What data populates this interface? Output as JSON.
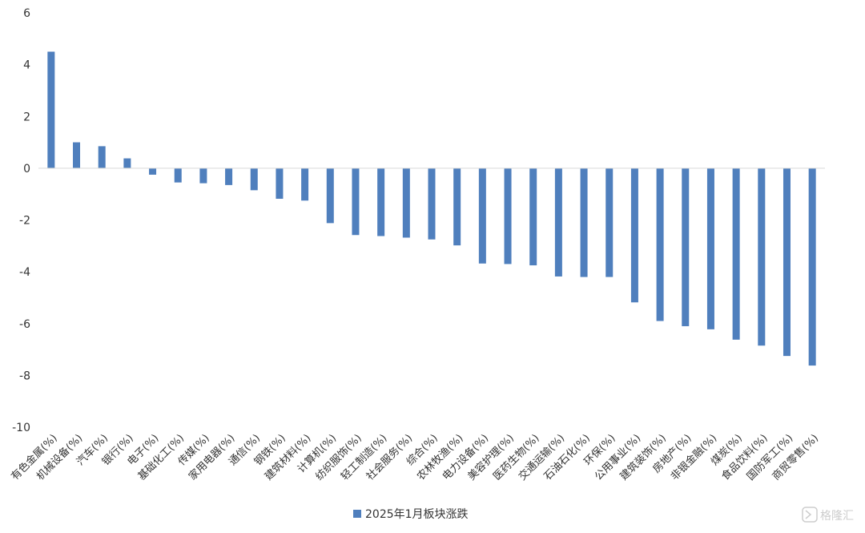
{
  "chart_data": {
    "type": "bar",
    "title": "",
    "xlabel": "",
    "ylabel": "",
    "ylim": [
      -10,
      6
    ],
    "yticks": [
      6,
      4,
      2,
      0,
      -2,
      -4,
      -6,
      -8,
      -10
    ],
    "grid": false,
    "legend_position": "bottom-center",
    "bar_color": "#4f7fbd",
    "categories": [
      "有色金属(%)",
      "机械设备(%)",
      "汽车(%)",
      "银行(%)",
      "电子(%)",
      "基础化工(%)",
      "传媒(%)",
      "家用电器(%)",
      "通信(%)",
      "钢铁(%)",
      "建筑材料(%)",
      "计算机(%)",
      "纺织服饰(%)",
      "轻工制造(%)",
      "社会服务(%)",
      "综合(%)",
      "农林牧渔(%)",
      "电力设备(%)",
      "美容护理(%)",
      "医药生物(%)",
      "交通运输(%)",
      "石油石化(%)",
      "环保(%)",
      "公用事业(%)",
      "建筑装饰(%)",
      "房地产(%)",
      "非银金融(%)",
      "煤炭(%)",
      "食品饮料(%)",
      "国防军工(%)",
      "商贸零售(%)"
    ],
    "series": [
      {
        "name": "2025年1月板块涨跌",
        "values": [
          4.5,
          1.0,
          0.85,
          0.38,
          -0.25,
          -0.55,
          -0.58,
          -0.65,
          -0.85,
          -1.18,
          -1.25,
          -2.12,
          -2.58,
          -2.62,
          -2.68,
          -2.75,
          -2.98,
          -3.68,
          -3.7,
          -3.75,
          -4.18,
          -4.2,
          -4.2,
          -5.18,
          -5.9,
          -6.1,
          -6.22,
          -6.62,
          -6.85,
          -7.25,
          -7.62
        ]
      }
    ]
  },
  "watermark": {
    "text": "格隆汇",
    "icon": "gelonghui-logo-icon"
  }
}
